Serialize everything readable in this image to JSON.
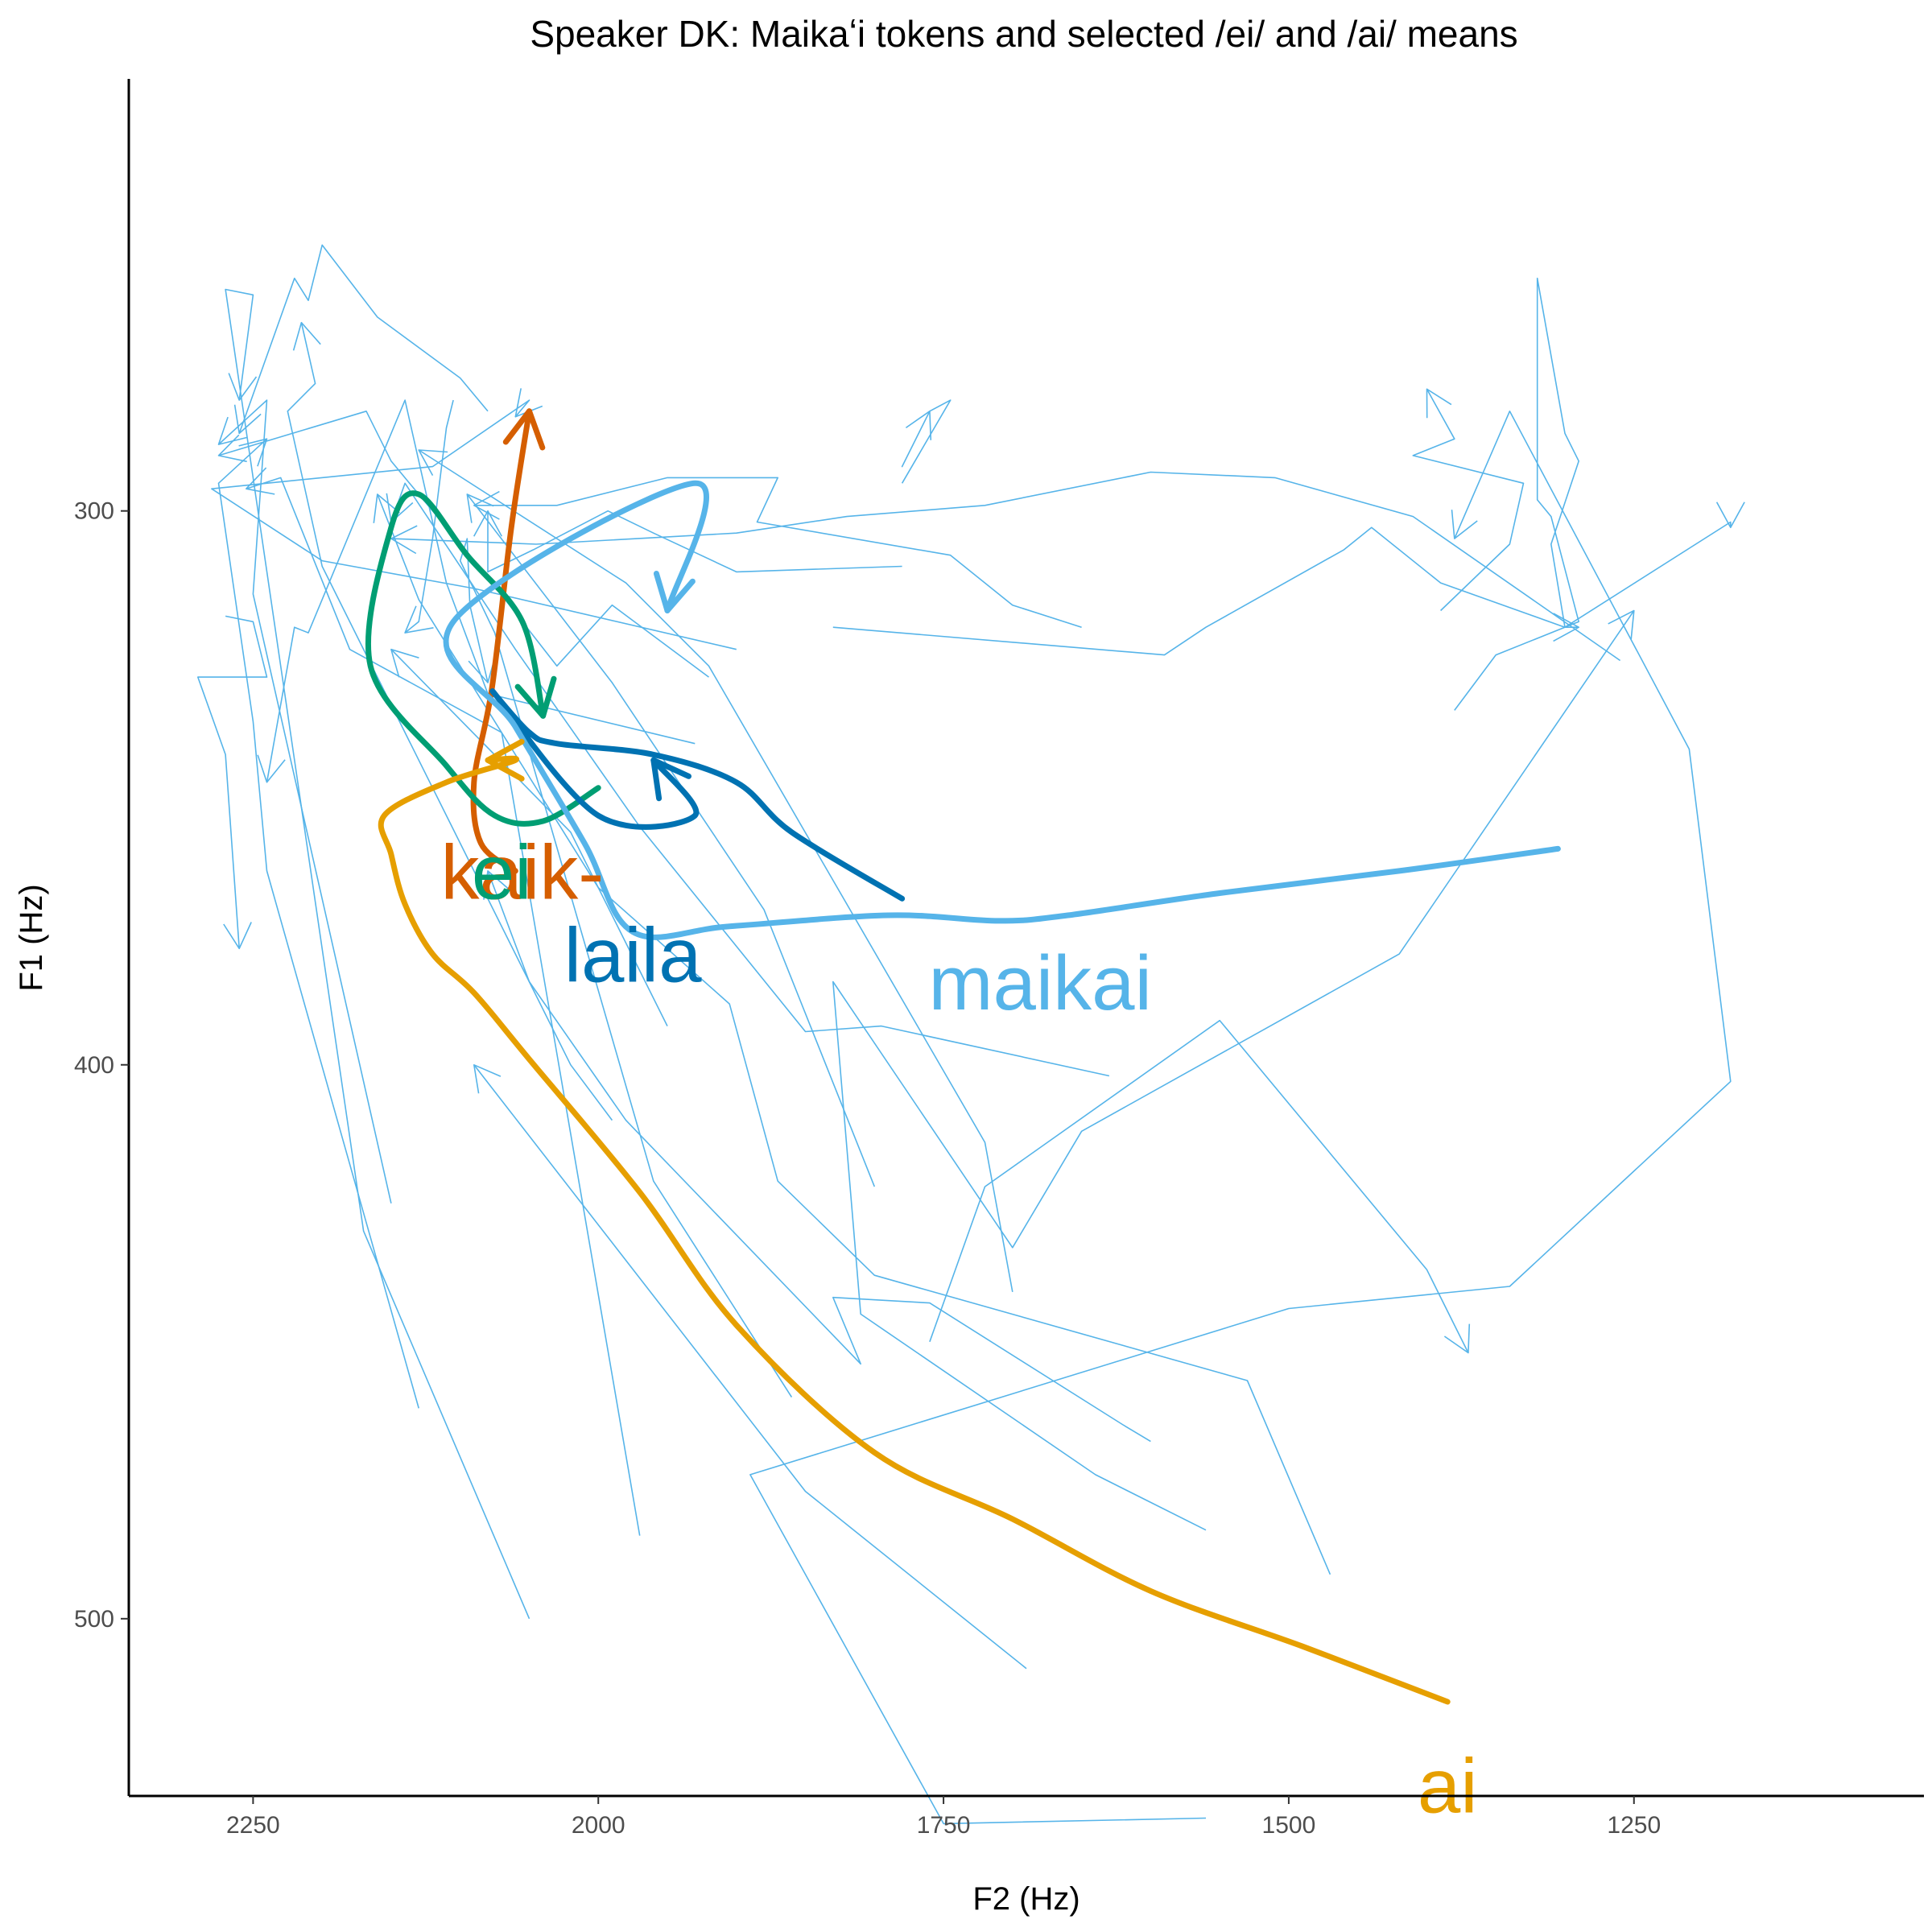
{
  "chart_data": {
    "type": "line",
    "title": "Speaker DK: Maikaʻi tokens and selected /ei/ and /ai/ means",
    "xlabel": "F2 (Hz)",
    "ylabel": "F1 (Hz)",
    "xlim": [
      2340,
      1040
    ],
    "ylim": [
      222,
      532
    ],
    "x_reversed": true,
    "y_reversed": true,
    "x_ticks": [
      2250,
      2000,
      1750,
      1500,
      1250
    ],
    "y_ticks": [
      300,
      400,
      500
    ],
    "grid": false,
    "legend": "none",
    "token_color": "#56B4E9",
    "tokens": [
      {
        "points": [
          [
            2130,
            462
          ],
          [
            2240,
            365
          ],
          [
            2250,
            338
          ],
          [
            2275,
            295
          ],
          [
            2240,
            287
          ]
        ]
      },
      {
        "points": [
          [
            2150,
            425
          ],
          [
            2250,
            315
          ],
          [
            2240,
            280
          ],
          [
            2275,
            288
          ]
        ]
      },
      {
        "points": [
          [
            1970,
            485
          ],
          [
            2070,
            340
          ],
          [
            2180,
            325
          ],
          [
            2230,
            294
          ],
          [
            2255,
            296
          ]
        ]
      },
      {
        "points": [
          [
            2050,
            500
          ],
          [
            2170,
            430
          ],
          [
            2270,
            260
          ],
          [
            2250,
            261
          ],
          [
            2260,
            280
          ]
        ]
      },
      {
        "points": [
          [
            1990,
            410
          ],
          [
            2020,
            400
          ],
          [
            2200,
            310
          ],
          [
            2225,
            282
          ],
          [
            2205,
            277
          ],
          [
            2215,
            266
          ]
        ]
      },
      {
        "points": [
          [
            1760,
            450
          ],
          [
            1720,
            422
          ],
          [
            1550,
            392
          ],
          [
            1400,
            437
          ],
          [
            1370,
            452
          ]
        ]
      },
      {
        "points": [
          [
            1560,
            484
          ],
          [
            1640,
            474
          ],
          [
            1810,
            445
          ],
          [
            1830,
            385
          ],
          [
            1700,
            433
          ],
          [
            1650,
            412
          ],
          [
            1420,
            380
          ],
          [
            1250,
            318
          ]
        ]
      },
      {
        "points": [
          [
            1630,
            402
          ],
          [
            1795,
            393
          ],
          [
            1850,
            394
          ],
          [
            1970,
            357
          ],
          [
            2060,
            325
          ],
          [
            2140,
            295
          ],
          [
            2150,
            302
          ]
        ]
      },
      {
        "points": [
          [
            1700,
            441
          ],
          [
            1720,
            414
          ],
          [
            1920,
            328
          ],
          [
            1980,
            313
          ],
          [
            2130,
            289
          ]
        ]
      },
      {
        "points": [
          [
            1560,
            536
          ],
          [
            1750,
            537
          ],
          [
            1890,
            474
          ],
          [
            1500,
            444
          ],
          [
            1340,
            440
          ],
          [
            1180,
            403
          ],
          [
            1210,
            343
          ],
          [
            1340,
            282
          ],
          [
            1380,
            305
          ]
        ]
      },
      {
        "points": [
          [
            1470,
            492
          ],
          [
            1530,
            457
          ],
          [
            1800,
            438
          ],
          [
            1870,
            421
          ],
          [
            1905,
            389
          ],
          [
            2000,
            368
          ],
          [
            2130,
            316
          ],
          [
            2160,
            297
          ]
        ]
      },
      {
        "points": [
          [
            1600,
            468
          ],
          [
            1620,
            465
          ],
          [
            1760,
            443
          ],
          [
            1830,
            442
          ],
          [
            1810,
            454
          ],
          [
            1980,
            410
          ],
          [
            2050,
            385
          ],
          [
            2080,
            365
          ]
        ]
      },
      {
        "points": [
          [
            1690,
            509
          ],
          [
            1850,
            477
          ],
          [
            2090,
            400
          ]
        ]
      },
      {
        "points": [
          [
            1950,
            393
          ],
          [
            2020,
            358
          ],
          [
            2150,
            325
          ]
        ]
      },
      {
        "points": [
          [
            1800,
            422
          ],
          [
            1880,
            372
          ],
          [
            1990,
            331
          ],
          [
            2095,
            297
          ]
        ]
      },
      {
        "points": [
          [
            1860,
            460
          ],
          [
            1960,
            421
          ],
          [
            2075,
            322
          ],
          [
            2100,
            309
          ],
          [
            2095,
            305
          ],
          [
            2093,
            317
          ],
          [
            2080,
            331
          ]
        ]
      },
      {
        "points": [
          [
            1830,
            321
          ],
          [
            1590,
            326
          ],
          [
            1560,
            321
          ],
          [
            1460,
            307
          ],
          [
            1440,
            303
          ],
          [
            1390,
            313
          ],
          [
            1300,
            321
          ],
          [
            1290,
            321
          ]
        ]
      },
      {
        "points": [
          [
            1380,
            336
          ],
          [
            1350,
            326
          ],
          [
            1290,
            320
          ],
          [
            1310,
            301
          ],
          [
            1320,
            298
          ],
          [
            1320,
            258
          ],
          [
            1300,
            286
          ],
          [
            1290,
            291
          ],
          [
            1310,
            306
          ],
          [
            1300,
            321
          ],
          [
            1180,
            302
          ],
          [
            1180,
            303
          ]
        ]
      },
      {
        "points": [
          [
            1390,
            318
          ],
          [
            1340,
            306
          ],
          [
            1330,
            295
          ],
          [
            1410,
            290
          ],
          [
            1380,
            287
          ],
          [
            1400,
            278
          ]
        ]
      },
      {
        "points": [
          [
            1260,
            327
          ],
          [
            1410,
            301
          ],
          [
            1510,
            294
          ],
          [
            1600,
            293
          ],
          [
            1720,
            299
          ],
          [
            1820,
            301
          ],
          [
            1900,
            304
          ],
          [
            2045,
            306
          ],
          [
            2150,
            305
          ]
        ]
      },
      {
        "points": [
          [
            1650,
            321
          ],
          [
            1700,
            317
          ],
          [
            1745,
            308
          ],
          [
            1885,
            302
          ],
          [
            1870,
            294
          ],
          [
            1950,
            294
          ],
          [
            2030,
            299
          ],
          [
            2090,
            299
          ]
        ]
      },
      {
        "points": [
          [
            1780,
            310
          ],
          [
            1900,
            311
          ],
          [
            1960,
            304
          ],
          [
            1993,
            300
          ],
          [
            2047,
            307
          ],
          [
            2080,
            311
          ],
          [
            2080,
            300
          ]
        ]
      },
      {
        "points": [
          [
            1900,
            325
          ],
          [
            2090,
            314
          ],
          [
            2200,
            309
          ],
          [
            2280,
            296
          ],
          [
            2120,
            292
          ],
          [
            2050,
            280
          ],
          [
            2060,
            283
          ]
        ]
      },
      {
        "points": [
          [
            1920,
            330
          ],
          [
            1990,
            317
          ],
          [
            2030,
            328
          ],
          [
            2080,
            312
          ],
          [
            2150,
            291
          ],
          [
            2168,
            282
          ],
          [
            2275,
            290
          ]
        ]
      },
      {
        "points": [
          [
            2080,
            282
          ],
          [
            2100,
            276
          ],
          [
            2160,
            265
          ],
          [
            2200,
            252
          ],
          [
            2210,
            262
          ],
          [
            2220,
            258
          ],
          [
            2260,
            286
          ]
        ]
      },
      {
        "points": [
          [
            2270,
            319
          ],
          [
            2250,
            320
          ],
          [
            2240,
            330
          ],
          [
            2290,
            330
          ],
          [
            2270,
            344
          ],
          [
            2260,
            379
          ]
        ]
      },
      {
        "points": [
          [
            1930,
            342
          ],
          [
            2080,
            333
          ],
          [
            2110,
            313
          ],
          [
            2140,
            280
          ],
          [
            2210,
            322
          ],
          [
            2220,
            321
          ],
          [
            2240,
            349
          ]
        ]
      },
      {
        "points": [
          [
            2105,
            280
          ],
          [
            2110,
            285
          ],
          [
            2120,
            305
          ],
          [
            2130,
            320
          ],
          [
            2140,
            322
          ]
        ]
      },
      {
        "points": [
          [
            1780,
            295
          ],
          [
            1745,
            280
          ],
          [
            1760,
            282
          ],
          [
            1780,
            292
          ],
          [
            1760,
            282
          ]
        ]
      }
    ],
    "series": [
      {
        "name": "kaik-",
        "color": "#D55E00",
        "points": [
          [
            2060,
            365
          ],
          [
            2085,
            360
          ],
          [
            2090,
            349
          ],
          [
            2077,
            332
          ],
          [
            2063,
            303
          ],
          [
            2050,
            282
          ]
        ],
        "label_at": [
          2055,
          370
        ]
      },
      {
        "name": "ei",
        "color": "#009E73",
        "points": [
          [
            2000,
            350
          ],
          [
            2040,
            356
          ],
          [
            2075,
            355
          ],
          [
            2110,
            346
          ],
          [
            2165,
            328
          ],
          [
            2150,
            303
          ],
          [
            2130,
            297
          ],
          [
            2095,
            308
          ],
          [
            2055,
            320
          ],
          [
            2040,
            337
          ]
        ],
        "label_at": [
          2070,
          370
        ]
      },
      {
        "name": "laila",
        "color": "#0072B2",
        "points": [
          [
            1780,
            370
          ],
          [
            1860,
            358
          ],
          [
            1900,
            349
          ],
          [
            1960,
            344
          ],
          [
            2030,
            342
          ],
          [
            2050,
            340
          ],
          [
            2075,
            333
          ],
          [
            2000,
            355
          ],
          [
            1930,
            355
          ],
          [
            1960,
            345
          ]
        ],
        "label_at": [
          1975,
          385
        ]
      },
      {
        "name": "maikai",
        "color": "#56B4E9",
        "points": [
          [
            1305,
            361
          ],
          [
            1420,
            365
          ],
          [
            1550,
            369
          ],
          [
            1660,
            373
          ],
          [
            1710,
            374
          ],
          [
            1790,
            373
          ],
          [
            1905,
            375
          ],
          [
            1975,
            376
          ],
          [
            2010,
            360
          ],
          [
            2060,
            339
          ],
          [
            2105,
            320
          ],
          [
            1930,
            295
          ],
          [
            1950,
            318
          ]
        ],
        "label_at": [
          1680,
          390
        ]
      },
      {
        "name": "ai",
        "color": "#E69F00",
        "points": [
          [
            1385,
            515
          ],
          [
            1490,
            505
          ],
          [
            1600,
            495
          ],
          [
            1700,
            482
          ],
          [
            1800,
            470
          ],
          [
            1900,
            447
          ],
          [
            1970,
            423
          ],
          [
            2050,
            399
          ],
          [
            2090,
            387
          ],
          [
            2120,
            380
          ],
          [
            2140,
            371
          ],
          [
            2150,
            362
          ],
          [
            2155,
            355
          ],
          [
            2110,
            349
          ],
          [
            2060,
            345
          ],
          [
            2080,
            345
          ]
        ],
        "label_at": [
          1385,
          535
        ]
      }
    ]
  }
}
